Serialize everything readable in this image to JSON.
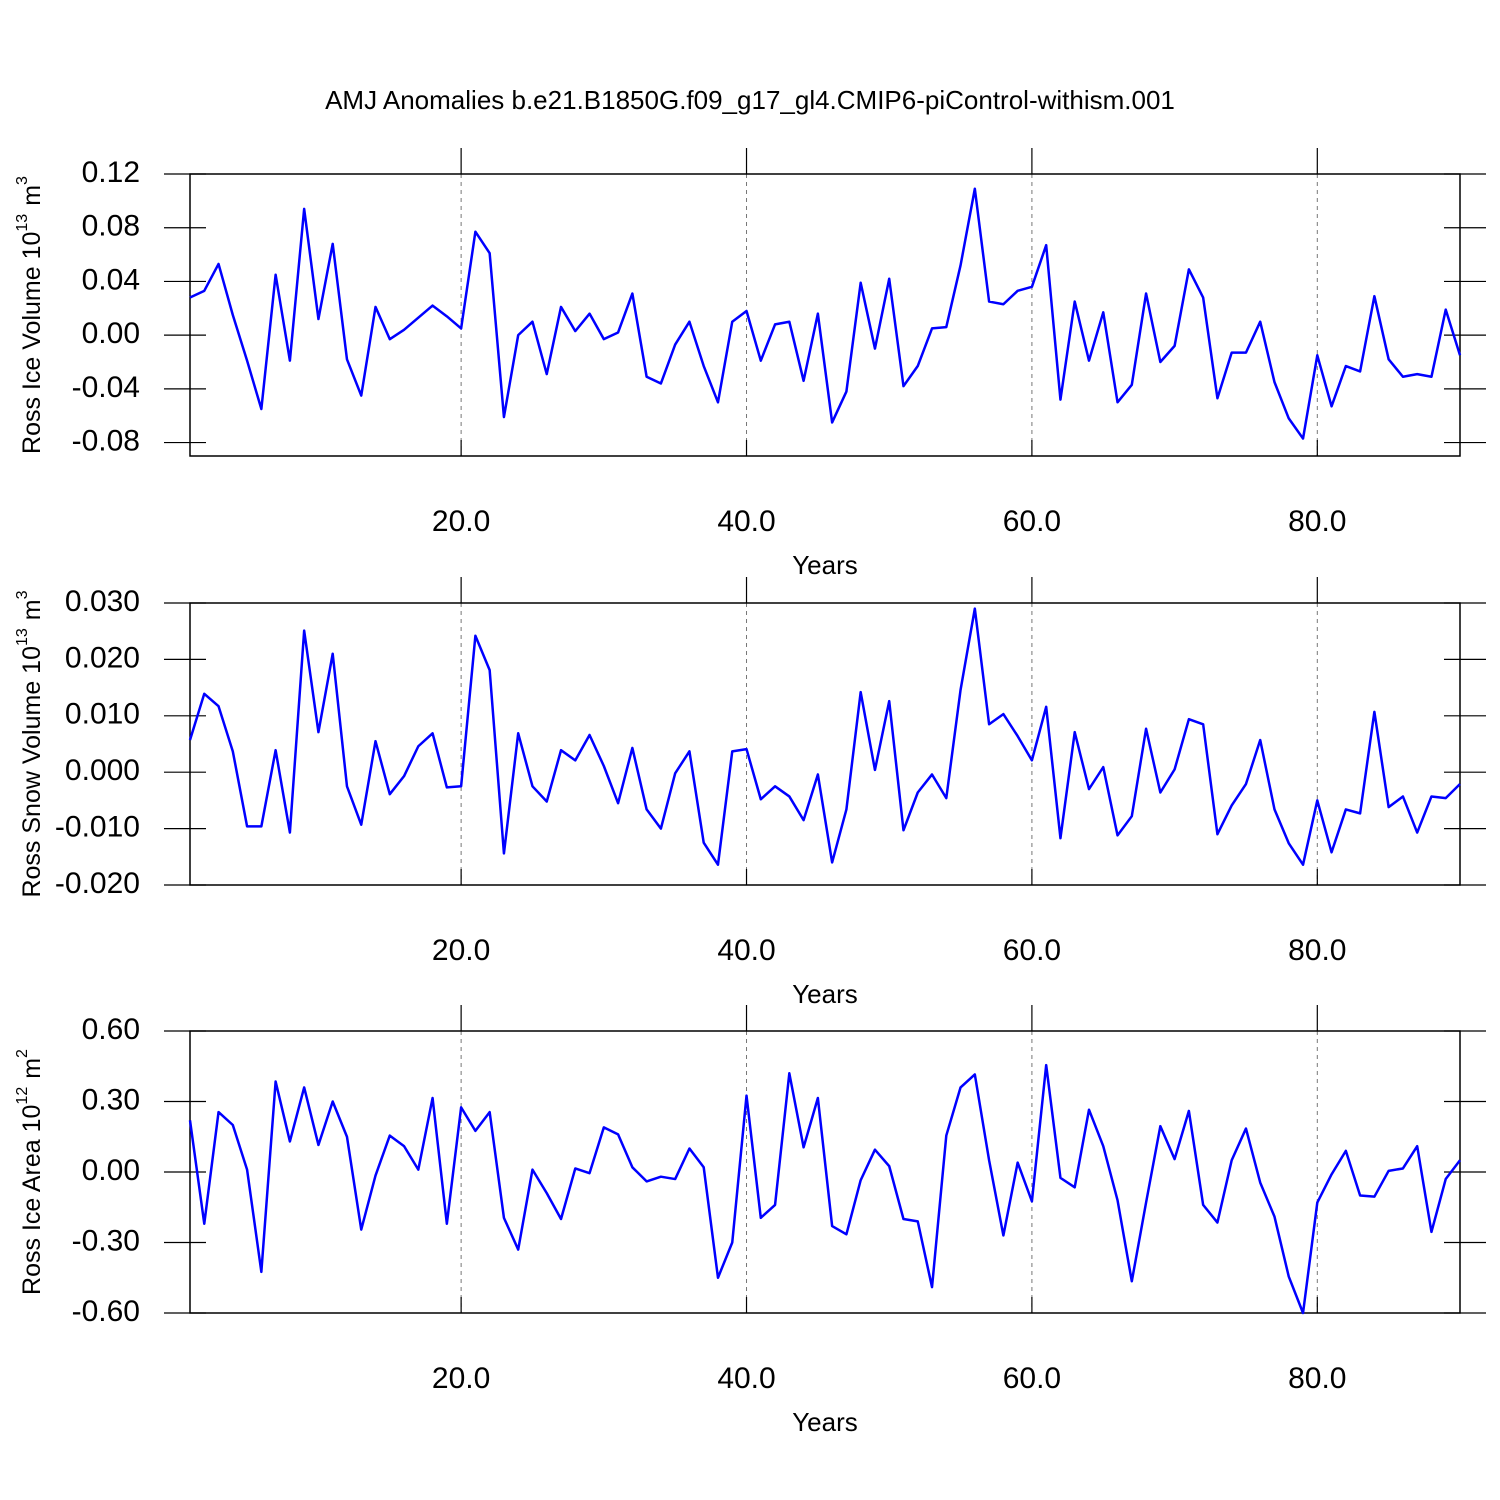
{
  "chart_data": [
    {
      "type": "line",
      "title": "AMJ Anomalies b.e21.B1850G.f09_g17_gl4.CMIP6-piControl-withism.001",
      "ylabel": "Ross Ice Volume 10",
      "ylabel_exp": "13",
      "ylabel_unit": "m",
      "ylabel_unit_exp": "3",
      "xlabel": "Years",
      "color": "#0000ff",
      "xgrid": true,
      "xlim": [
        1,
        90
      ],
      "xticks": [
        {
          "value": 20,
          "label": "20.0"
        },
        {
          "value": 40,
          "label": "40.0"
        },
        {
          "value": 60,
          "label": "60.0"
        },
        {
          "value": 80,
          "label": "80.0"
        }
      ],
      "ylim": [
        -0.09,
        0.12
      ],
      "yticks": [
        -0.08,
        -0.04,
        {
          "value": 0,
          "label": "0.00"
        },
        0.04,
        0.08,
        0.12
      ],
      "x": [
        1,
        2,
        3,
        4,
        5,
        6,
        7,
        8,
        9,
        10,
        11,
        12,
        13,
        14,
        15,
        16,
        17,
        18,
        19,
        20,
        21,
        22,
        23,
        24,
        25,
        26,
        27,
        28,
        29,
        30,
        31,
        32,
        33,
        34,
        35,
        36,
        37,
        38,
        39,
        40,
        41,
        42,
        43,
        44,
        45,
        46,
        47,
        48,
        49,
        50,
        51,
        52,
        53,
        54,
        55,
        56,
        57,
        58,
        59,
        60,
        61,
        62,
        63,
        64,
        65,
        66,
        67,
        68,
        69,
        70,
        71,
        72,
        73,
        74,
        75,
        76,
        77,
        78,
        79,
        80,
        81,
        82,
        83,
        84,
        85,
        86,
        87,
        88,
        89,
        90
      ],
      "values": [
        0.028,
        0.033,
        0.053,
        0.015,
        -0.019,
        -0.055,
        0.045,
        -0.019,
        0.094,
        0.012,
        0.068,
        -0.018,
        -0.045,
        0.021,
        -0.003,
        0.004,
        0.013,
        0.022,
        0.014,
        0.005,
        0.077,
        0.061,
        -0.061,
        0.0,
        0.01,
        -0.029,
        0.021,
        0.003,
        0.016,
        -0.003,
        0.002,
        0.031,
        -0.031,
        -0.036,
        -0.007,
        0.01,
        -0.023,
        -0.05,
        0.01,
        0.018,
        -0.019,
        0.008,
        0.01,
        -0.034,
        0.016,
        -0.065,
        -0.042,
        0.039,
        -0.01,
        0.042,
        -0.038,
        -0.023,
        0.005,
        0.006,
        0.052,
        0.109,
        0.025,
        0.023,
        0.033,
        0.036,
        0.067,
        -0.048,
        0.025,
        -0.019,
        0.017,
        -0.05,
        -0.037,
        0.031,
        -0.02,
        -0.008,
        0.049,
        0.028,
        -0.047,
        -0.013,
        -0.013,
        0.01,
        -0.035,
        -0.062,
        -0.077,
        -0.015,
        -0.053,
        -0.023,
        -0.027,
        0.029,
        -0.018,
        -0.031,
        -0.029,
        -0.031,
        0.019,
        -0.015
      ]
    },
    {
      "type": "line",
      "ylabel": "Ross Snow Volume 10",
      "ylabel_exp": "13",
      "ylabel_unit": "m",
      "ylabel_unit_exp": "3",
      "xlabel": "Years",
      "color": "#0000ff",
      "xgrid": true,
      "xlim": [
        1,
        90
      ],
      "xticks": [
        {
          "value": 20,
          "label": "20.0"
        },
        {
          "value": 40,
          "label": "40.0"
        },
        {
          "value": 60,
          "label": "60.0"
        },
        {
          "value": 80,
          "label": "80.0"
        }
      ],
      "ylim": [
        -0.02,
        0.03
      ],
      "yticks": [
        {
          "value": -0.02,
          "label": "-0.020"
        },
        {
          "value": -0.01,
          "label": "-0.010"
        },
        {
          "value": 0,
          "label": "0.000"
        },
        {
          "value": 0.01,
          "label": "0.010"
        },
        {
          "value": 0.02,
          "label": "0.020"
        },
        {
          "value": 0.03,
          "label": "0.030"
        }
      ],
      "x": [
        1,
        2,
        3,
        4,
        5,
        6,
        7,
        8,
        9,
        10,
        11,
        12,
        13,
        14,
        15,
        16,
        17,
        18,
        19,
        20,
        21,
        22,
        23,
        24,
        25,
        26,
        27,
        28,
        29,
        30,
        31,
        32,
        33,
        34,
        35,
        36,
        37,
        38,
        39,
        40,
        41,
        42,
        43,
        44,
        45,
        46,
        47,
        48,
        49,
        50,
        51,
        52,
        53,
        54,
        55,
        56,
        57,
        58,
        59,
        60,
        61,
        62,
        63,
        64,
        65,
        66,
        67,
        68,
        69,
        70,
        71,
        72,
        73,
        74,
        75,
        76,
        77,
        78,
        79,
        80,
        81,
        82,
        83,
        84,
        85,
        86,
        87,
        88,
        89,
        90
      ],
      "values": [
        0.0057,
        0.0139,
        0.0117,
        0.0037,
        -0.0096,
        -0.0096,
        0.0039,
        -0.0107,
        0.0251,
        0.0071,
        0.021,
        -0.0025,
        -0.0093,
        0.0055,
        -0.0039,
        -0.0007,
        0.0046,
        0.0069,
        -0.0027,
        -0.0025,
        0.0242,
        0.0181,
        -0.0144,
        0.0069,
        -0.0025,
        -0.0052,
        0.0039,
        0.0021,
        0.0066,
        0.0011,
        -0.0055,
        0.0043,
        -0.0066,
        -0.01,
        -0.0002,
        0.0037,
        -0.0125,
        -0.0164,
        0.0037,
        0.0041,
        -0.0048,
        -0.0025,
        -0.0043,
        -0.0085,
        -0.0004,
        -0.016,
        -0.0066,
        0.0142,
        0.0004,
        0.0126,
        -0.0103,
        -0.0036,
        -0.0004,
        -0.0046,
        0.0146,
        0.029,
        0.0085,
        0.0103,
        0.0064,
        0.0021,
        0.0116,
        -0.0117,
        0.0071,
        -0.003,
        0.0009,
        -0.0112,
        -0.0078,
        0.0077,
        -0.0036,
        0.0005,
        0.0094,
        0.0085,
        -0.011,
        -0.0059,
        -0.0021,
        0.0057,
        -0.0066,
        -0.0126,
        -0.0164,
        -0.005,
        -0.0142,
        -0.0066,
        -0.0073,
        0.0107,
        -0.0062,
        -0.0043,
        -0.0107,
        -0.0043,
        -0.0046,
        -0.0021
      ]
    },
    {
      "type": "line",
      "ylabel": "Ross Ice Area 10",
      "ylabel_exp": "12",
      "ylabel_unit": "m",
      "ylabel_unit_exp": "2",
      "xlabel": "Years",
      "color": "#0000ff",
      "xgrid": true,
      "xlim": [
        1,
        90
      ],
      "xticks": [
        {
          "value": 20,
          "label": "20.0"
        },
        {
          "value": 40,
          "label": "40.0"
        },
        {
          "value": 60,
          "label": "60.0"
        },
        {
          "value": 80,
          "label": "80.0"
        }
      ],
      "ylim": [
        -0.6,
        0.6
      ],
      "yticks": [
        {
          "value": -0.6,
          "label": "-0.60"
        },
        {
          "value": -0.3,
          "label": "-0.30"
        },
        {
          "value": 0,
          "label": "0.00"
        },
        {
          "value": 0.3,
          "label": "0.30"
        },
        {
          "value": 0.6,
          "label": "0.60"
        }
      ],
      "x": [
        1,
        2,
        3,
        4,
        5,
        6,
        7,
        8,
        9,
        10,
        11,
        12,
        13,
        14,
        15,
        16,
        17,
        18,
        19,
        20,
        21,
        22,
        23,
        24,
        25,
        26,
        27,
        28,
        29,
        30,
        31,
        32,
        33,
        34,
        35,
        36,
        37,
        38,
        39,
        40,
        41,
        42,
        43,
        44,
        45,
        46,
        47,
        48,
        49,
        50,
        51,
        52,
        53,
        54,
        55,
        56,
        57,
        58,
        59,
        60,
        61,
        62,
        63,
        64,
        65,
        66,
        67,
        68,
        69,
        70,
        71,
        72,
        73,
        74,
        75,
        76,
        77,
        78,
        79,
        80,
        81,
        82,
        83,
        84,
        85,
        86,
        87,
        88,
        89,
        90
      ],
      "values": [
        0.22,
        -0.22,
        0.255,
        0.2,
        0.01,
        -0.425,
        0.385,
        0.13,
        0.36,
        0.115,
        0.3,
        0.15,
        -0.245,
        -0.015,
        0.155,
        0.11,
        0.01,
        0.315,
        -0.22,
        0.275,
        0.175,
        0.255,
        -0.195,
        -0.33,
        0.01,
        -0.09,
        -0.2,
        0.015,
        -0.005,
        0.19,
        0.16,
        0.02,
        -0.04,
        -0.02,
        -0.03,
        0.1,
        0.02,
        -0.45,
        -0.3,
        0.325,
        -0.195,
        -0.14,
        0.42,
        0.105,
        0.315,
        -0.23,
        -0.265,
        -0.035,
        0.095,
        0.025,
        -0.2,
        -0.21,
        -0.49,
        0.155,
        0.36,
        0.415,
        0.05,
        -0.27,
        0.04,
        -0.125,
        0.455,
        -0.025,
        -0.065,
        0.265,
        0.11,
        -0.12,
        -0.465,
        -0.13,
        0.195,
        0.055,
        0.26,
        -0.14,
        -0.215,
        0.05,
        0.185,
        -0.045,
        -0.19,
        -0.445,
        -0.6,
        -0.13,
        -0.01,
        0.09,
        -0.1,
        -0.105,
        0.005,
        0.015,
        0.11,
        -0.255,
        -0.03,
        0.05
      ]
    }
  ]
}
